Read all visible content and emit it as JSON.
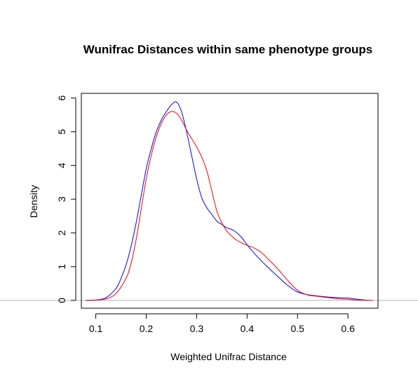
{
  "chart_data": {
    "type": "line",
    "title": "Wunifrac Distances within same phenotype groups",
    "xlabel": "Weighted Unifrac Distance",
    "ylabel": "Density",
    "xlim": [
      0.0714,
      0.6596
    ],
    "ylim": [
      -0.2317,
      6.1383
    ],
    "x_ticks": [
      "0.1",
      "0.2",
      "0.3",
      "0.4",
      "0.5",
      "0.6"
    ],
    "y_ticks": [
      "0",
      "1",
      "2",
      "3",
      "4",
      "5",
      "6"
    ],
    "grid": false,
    "legend": "none",
    "reference_line": {
      "y": 0,
      "color": "#b3b3b3"
    },
    "series": [
      {
        "color": "#0000ff",
        "x": [
          0.08,
          0.1,
          0.12,
          0.14,
          0.15,
          0.16,
          0.17,
          0.18,
          0.19,
          0.2,
          0.21,
          0.22,
          0.23,
          0.24,
          0.25,
          0.26,
          0.27,
          0.28,
          0.29,
          0.3,
          0.31,
          0.32,
          0.33,
          0.34,
          0.35,
          0.36,
          0.37,
          0.38,
          0.39,
          0.4,
          0.42,
          0.44,
          0.46,
          0.48,
          0.5,
          0.52,
          0.54,
          0.56,
          0.58,
          0.6,
          0.62,
          0.64
        ],
        "y": [
          0.0,
          0.01,
          0.08,
          0.35,
          0.65,
          1.05,
          1.6,
          2.3,
          3.1,
          3.9,
          4.5,
          5.0,
          5.35,
          5.6,
          5.8,
          5.88,
          5.6,
          5.0,
          4.3,
          3.6,
          3.05,
          2.75,
          2.55,
          2.35,
          2.25,
          2.15,
          2.1,
          2.0,
          1.85,
          1.65,
          1.3,
          1.0,
          0.72,
          0.45,
          0.25,
          0.17,
          0.13,
          0.1,
          0.08,
          0.07,
          0.03,
          0.0
        ]
      },
      {
        "color": "#ff0000",
        "x": [
          0.08,
          0.1,
          0.12,
          0.14,
          0.16,
          0.17,
          0.18,
          0.19,
          0.2,
          0.21,
          0.22,
          0.23,
          0.24,
          0.25,
          0.26,
          0.27,
          0.28,
          0.29,
          0.3,
          0.31,
          0.32,
          0.33,
          0.34,
          0.35,
          0.36,
          0.37,
          0.38,
          0.39,
          0.4,
          0.41,
          0.42,
          0.43,
          0.44,
          0.46,
          0.48,
          0.5,
          0.52,
          0.54,
          0.56,
          0.58,
          0.6,
          0.62,
          0.65
        ],
        "y": [
          0.0,
          0.01,
          0.04,
          0.2,
          0.65,
          1.1,
          1.8,
          2.7,
          3.6,
          4.3,
          4.85,
          5.25,
          5.5,
          5.6,
          5.55,
          5.35,
          5.05,
          4.8,
          4.55,
          4.25,
          3.85,
          3.25,
          2.65,
          2.3,
          2.05,
          1.9,
          1.78,
          1.7,
          1.63,
          1.58,
          1.5,
          1.4,
          1.25,
          0.95,
          0.6,
          0.3,
          0.16,
          0.12,
          0.08,
          0.05,
          0.03,
          0.01,
          0.0
        ]
      }
    ]
  }
}
